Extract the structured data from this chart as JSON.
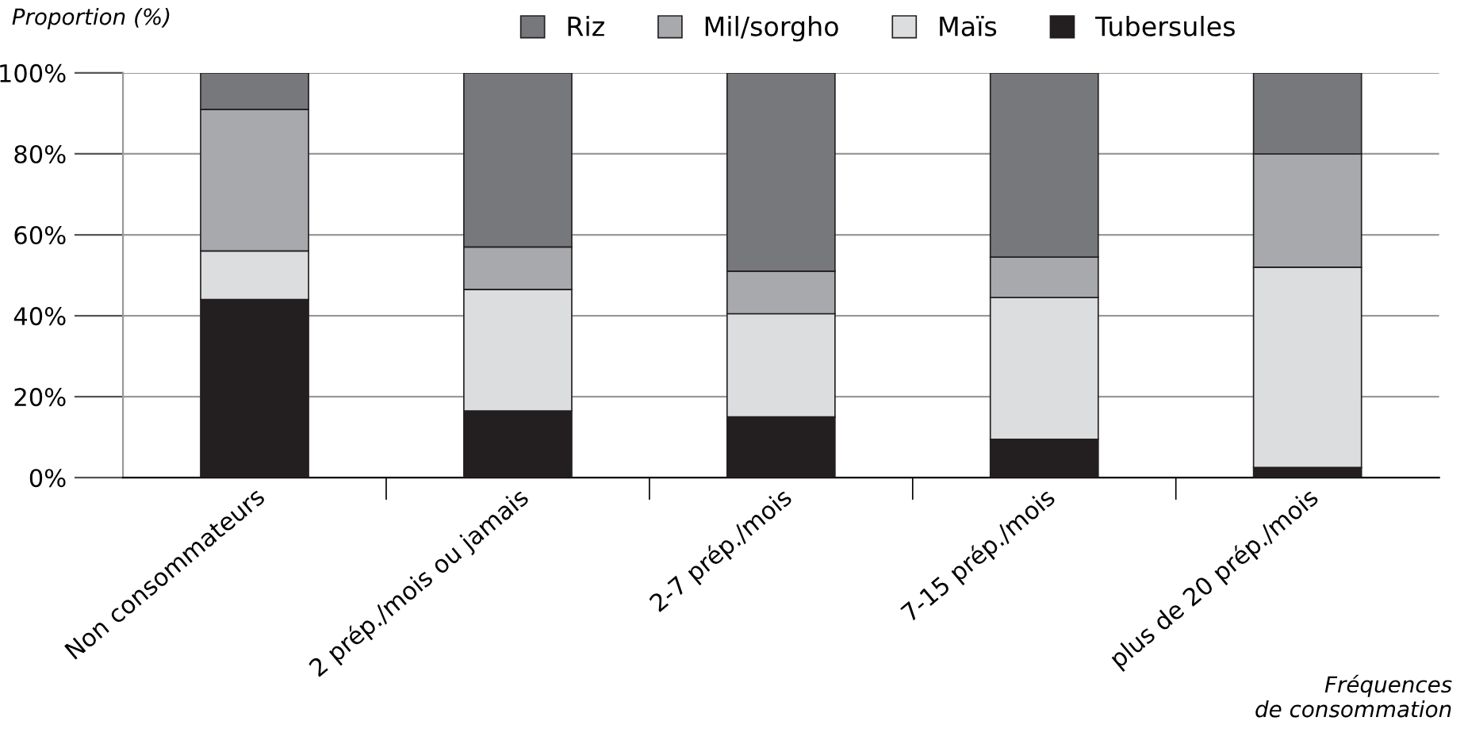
{
  "chart_data": {
    "type": "bar",
    "stacked": true,
    "ylabel": "Proportion (%)",
    "xlabel": "Fréquences\nde consommation",
    "categories": [
      "Non consommateurs",
      "2 prép./mois ou jamais",
      "2-7 prép./mois",
      "7-15 prép./mois",
      "plus de 20 prép./mois"
    ],
    "series": [
      {
        "name": "Tubersules",
        "color": "#231f20",
        "values": [
          44,
          16.5,
          15,
          9.5,
          2.5
        ]
      },
      {
        "name": "Maïs",
        "color": "#dcddde",
        "values": [
          12,
          30,
          25.5,
          35,
          49.5
        ]
      },
      {
        "name": "Mil/sorgho",
        "color": "#a7a9ac",
        "values": [
          35,
          10.5,
          10.5,
          10,
          28
        ]
      },
      {
        "name": "Riz",
        "color": "#77787b",
        "values": [
          9,
          43,
          49,
          45.5,
          20
        ]
      }
    ],
    "ylim": [
      0,
      100
    ],
    "yticks": [
      {
        "value": 0,
        "label": "0%"
      },
      {
        "value": 20,
        "label": "20%"
      },
      {
        "value": 40,
        "label": "40%"
      },
      {
        "value": 60,
        "label": "60%"
      },
      {
        "value": 80,
        "label": "80%"
      },
      {
        "value": 100,
        "label": "100%"
      }
    ],
    "grid": "y",
    "legend": "top"
  }
}
